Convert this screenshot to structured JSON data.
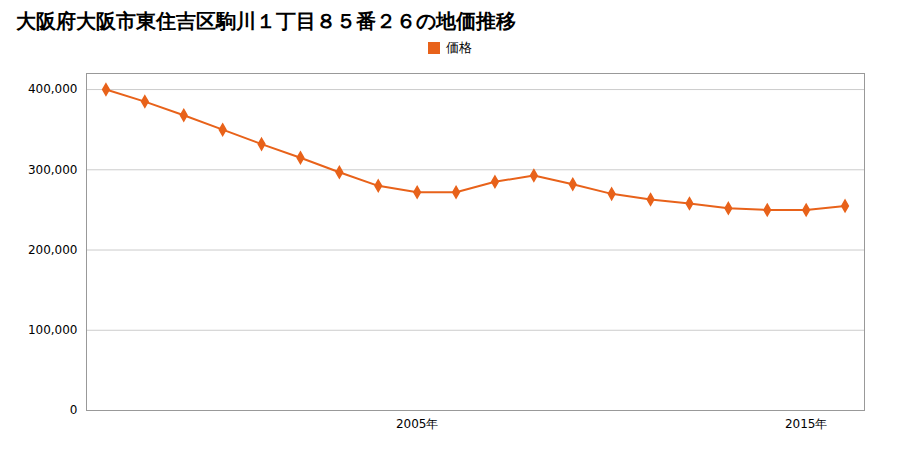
{
  "chart_data": {
    "type": "line",
    "title": "大阪府大阪市東住吉区駒川１丁目８５番２６の地価推移",
    "x": [
      1997,
      1998,
      1999,
      2000,
      2001,
      2002,
      2003,
      2004,
      2005,
      2006,
      2007,
      2008,
      2009,
      2010,
      2011,
      2012,
      2013,
      2014,
      2015,
      2016
    ],
    "series": [
      {
        "name": "価格",
        "color": "#E8621A",
        "marker": "diamond",
        "values": [
          400000,
          385000,
          368000,
          350000,
          332000,
          315000,
          297000,
          280000,
          272000,
          272000,
          285000,
          293000,
          282000,
          270000,
          263000,
          258000,
          252000,
          250000,
          250000,
          255000
        ]
      }
    ],
    "xlim": [
      1996.5,
      2016.5
    ],
    "xticks": [
      {
        "value": 2005,
        "label": "2005年"
      },
      {
        "value": 2015,
        "label": "2015年"
      }
    ],
    "ylim": [
      0,
      420000
    ],
    "yticks": [
      0,
      {
        "value": 100000,
        "label": "100,000"
      },
      {
        "value": 200000,
        "label": "200,000"
      },
      {
        "value": 300000,
        "label": "300,000"
      },
      {
        "value": 400000,
        "label": "400,000"
      }
    ],
    "grid": true,
    "legend": "top"
  }
}
